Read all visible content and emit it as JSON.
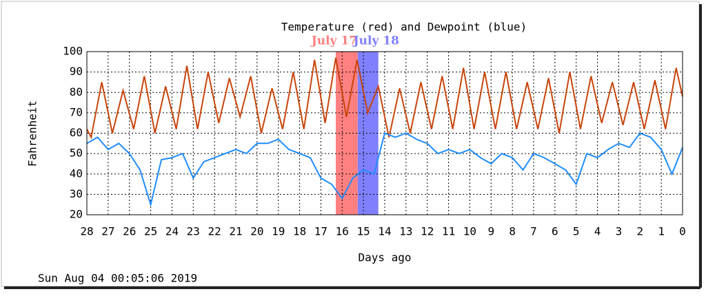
{
  "chart_data": {
    "type": "line",
    "title": "Temperature (red) and Dewpoint (blue)",
    "ylabel": "Fahrenheit",
    "xlabel": "Days ago",
    "footer": "Sun Aug 04 00:05:06 2019",
    "xlim": [
      28,
      0
    ],
    "ylim": [
      20,
      100
    ],
    "xticks": [
      28,
      27,
      26,
      25,
      24,
      23,
      22,
      21,
      20,
      19,
      18,
      17,
      16,
      15,
      14,
      13,
      12,
      11,
      10,
      9,
      8,
      7,
      6,
      5,
      4,
      3,
      2,
      1,
      0
    ],
    "yticks": [
      20,
      30,
      40,
      50,
      60,
      70,
      80,
      90,
      100
    ],
    "grid": true,
    "highlights": [
      {
        "label": "July 17",
        "color": "#ff8080",
        "range": [
          16.3,
          15.27
        ]
      },
      {
        "label": "July 18",
        "color": "#8080ff",
        "range": [
          15.27,
          14.3
        ]
      }
    ],
    "series": [
      {
        "color": "#c8440a",
        "x": [
          28,
          27.8,
          27.3,
          26.8,
          26.3,
          25.8,
          25.3,
          24.8,
          24.3,
          23.8,
          23.3,
          22.8,
          22.3,
          21.8,
          21.3,
          20.8,
          20.3,
          19.8,
          19.3,
          18.8,
          18.3,
          17.8,
          17.3,
          16.8,
          16.3,
          15.8,
          15.3,
          14.8,
          14.3,
          13.8,
          13.3,
          12.8,
          12.3,
          11.8,
          11.3,
          10.8,
          10.3,
          9.8,
          9.3,
          8.8,
          8.3,
          7.8,
          7.3,
          6.8,
          6.3,
          5.8,
          5.3,
          4.8,
          4.3,
          3.8,
          3.3,
          2.8,
          2.3,
          1.8,
          1.3,
          0.8,
          0.3,
          0
        ],
        "values": [
          62,
          58,
          85,
          60,
          81,
          62,
          88,
          60,
          83,
          62,
          93,
          62,
          90,
          65,
          87,
          68,
          88,
          60,
          82,
          62,
          90,
          62,
          96,
          65,
          97,
          68,
          96,
          70,
          83,
          58,
          82,
          60,
          85,
          62,
          88,
          62,
          92,
          62,
          90,
          62,
          90,
          62,
          85,
          62,
          87,
          60,
          90,
          62,
          88,
          65,
          85,
          64,
          85,
          62,
          86,
          62,
          92,
          78
        ]
      },
      {
        "color": "#1e8cff",
        "x": [
          28,
          27.5,
          27,
          26.5,
          26,
          25.5,
          25,
          24.5,
          24,
          23.5,
          23,
          22.5,
          22,
          21.5,
          21,
          20.5,
          20,
          19.5,
          19,
          18.5,
          18,
          17.5,
          17,
          16.5,
          16,
          15.5,
          15,
          14.5,
          14,
          13.5,
          13,
          12.5,
          12,
          11.5,
          11,
          10.5,
          10,
          9.5,
          9,
          8.5,
          8,
          7.5,
          7,
          6.5,
          6,
          5.5,
          5,
          4.5,
          4,
          3.5,
          3,
          2.5,
          2,
          1.5,
          1,
          0.5,
          0
        ],
        "values": [
          55,
          58,
          52,
          55,
          50,
          42,
          25,
          47,
          48,
          50,
          38,
          46,
          48,
          50,
          52,
          50,
          55,
          55,
          57,
          52,
          50,
          48,
          38,
          35,
          28,
          38,
          42,
          40,
          60,
          58,
          60,
          57,
          55,
          50,
          52,
          50,
          52,
          48,
          45,
          50,
          48,
          42,
          50,
          48,
          45,
          42,
          35,
          50,
          48,
          52,
          55,
          53,
          60,
          58,
          52,
          40,
          53
        ]
      }
    ]
  }
}
